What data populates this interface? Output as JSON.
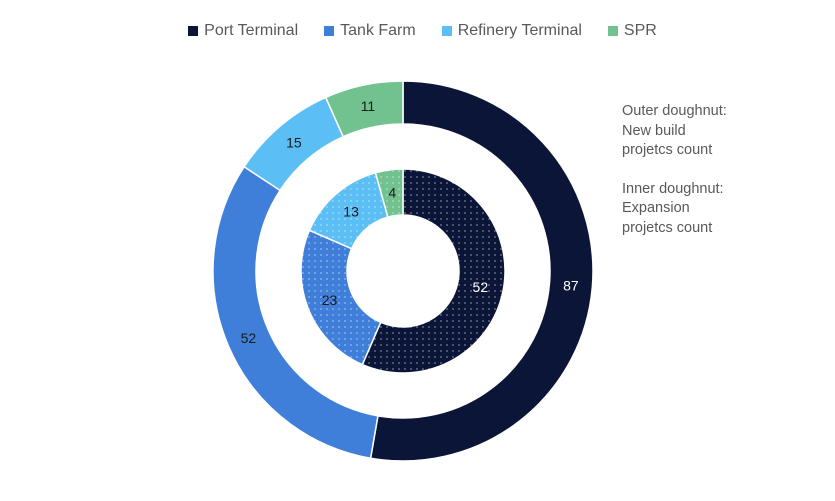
{
  "chart_data": {
    "type": "doughnut",
    "categories": [
      "Port Terminal",
      "Tank Farm",
      "Refinery Terminal",
      "SPR"
    ],
    "colors": [
      "#0b1538",
      "#3f7fd9",
      "#5bbff5",
      "#71c28f"
    ],
    "label_colors": [
      "#ffffff",
      "#1a1a1a",
      "#1a1a1a",
      "#1a1a1a"
    ],
    "series": [
      {
        "name": "New build projetcs count",
        "ring": "outer",
        "values": [
          87,
          52,
          15,
          11
        ]
      },
      {
        "name": "Expansion projetcs count",
        "ring": "inner",
        "values": [
          52,
          23,
          13,
          4
        ]
      }
    ],
    "legend_position": "top",
    "annotations": [
      "Outer doughnut: New build projetcs count",
      "Inner doughnut: Expansion projetcs count"
    ]
  }
}
